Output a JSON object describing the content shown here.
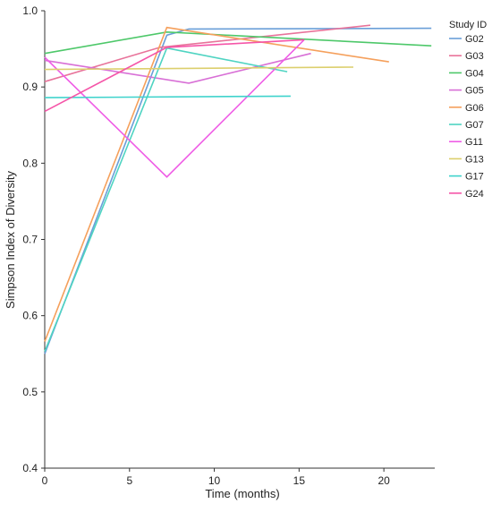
{
  "chart_data": {
    "type": "line",
    "title": "",
    "xlabel": "Time (months)",
    "ylabel": "Simpson Index of Diversity",
    "xlim": [
      0,
      23
    ],
    "ylim": [
      0.4,
      1.0
    ],
    "x_ticks": [
      0,
      5,
      10,
      15,
      20
    ],
    "y_ticks": [
      0.4,
      0.5,
      0.6,
      0.7,
      0.8,
      0.9,
      1.0
    ],
    "x_tick_labels": [
      "0",
      "5",
      "10",
      "15",
      "20"
    ],
    "y_tick_labels": [
      "0.4",
      "0.5",
      "0.6",
      "0.7",
      "0.8",
      "0.9",
      "1.0"
    ],
    "grid": false,
    "legend": {
      "title": "Study ID",
      "placement": "right"
    },
    "series": [
      {
        "name": "G02",
        "color": "#6a9fd8",
        "points": [
          [
            0,
            0.55
          ],
          [
            7.2,
            0.968
          ],
          [
            8.5,
            0.976
          ],
          [
            22.8,
            0.977
          ]
        ]
      },
      {
        "name": "G03",
        "color": "#e8739a",
        "points": [
          [
            0,
            0.907
          ],
          [
            6.8,
            0.952
          ],
          [
            19.2,
            0.981
          ]
        ]
      },
      {
        "name": "G04",
        "color": "#4ec86a",
        "points": [
          [
            0,
            0.944
          ],
          [
            7.2,
            0.972
          ],
          [
            22.8,
            0.954
          ]
        ]
      },
      {
        "name": "G05",
        "color": "#d86fd6",
        "points": [
          [
            0,
            0.935
          ],
          [
            8.5,
            0.905
          ],
          [
            15.7,
            0.944
          ]
        ]
      },
      {
        "name": "G06",
        "color": "#f5a05c",
        "points": [
          [
            0,
            0.566
          ],
          [
            7.2,
            0.978
          ],
          [
            20.3,
            0.933
          ]
        ]
      },
      {
        "name": "G07",
        "color": "#4fd4c2",
        "points": [
          [
            0,
            0.553
          ],
          [
            7.2,
            0.951
          ],
          [
            14.3,
            0.92
          ]
        ]
      },
      {
        "name": "G11",
        "color": "#ef5de6",
        "points": [
          [
            0,
            0.939
          ],
          [
            7.2,
            0.782
          ],
          [
            15.3,
            0.962
          ]
        ]
      },
      {
        "name": "G13",
        "color": "#dccf6d",
        "points": [
          [
            0,
            0.923
          ],
          [
            18.2,
            0.926
          ]
        ]
      },
      {
        "name": "G17",
        "color": "#3fd3cc",
        "points": [
          [
            0,
            0.886
          ],
          [
            14.5,
            0.888
          ]
        ]
      },
      {
        "name": "G24",
        "color": "#f555a8",
        "points": [
          [
            0,
            0.868
          ],
          [
            7.2,
            0.952
          ],
          [
            15.3,
            0.962
          ]
        ]
      }
    ]
  }
}
